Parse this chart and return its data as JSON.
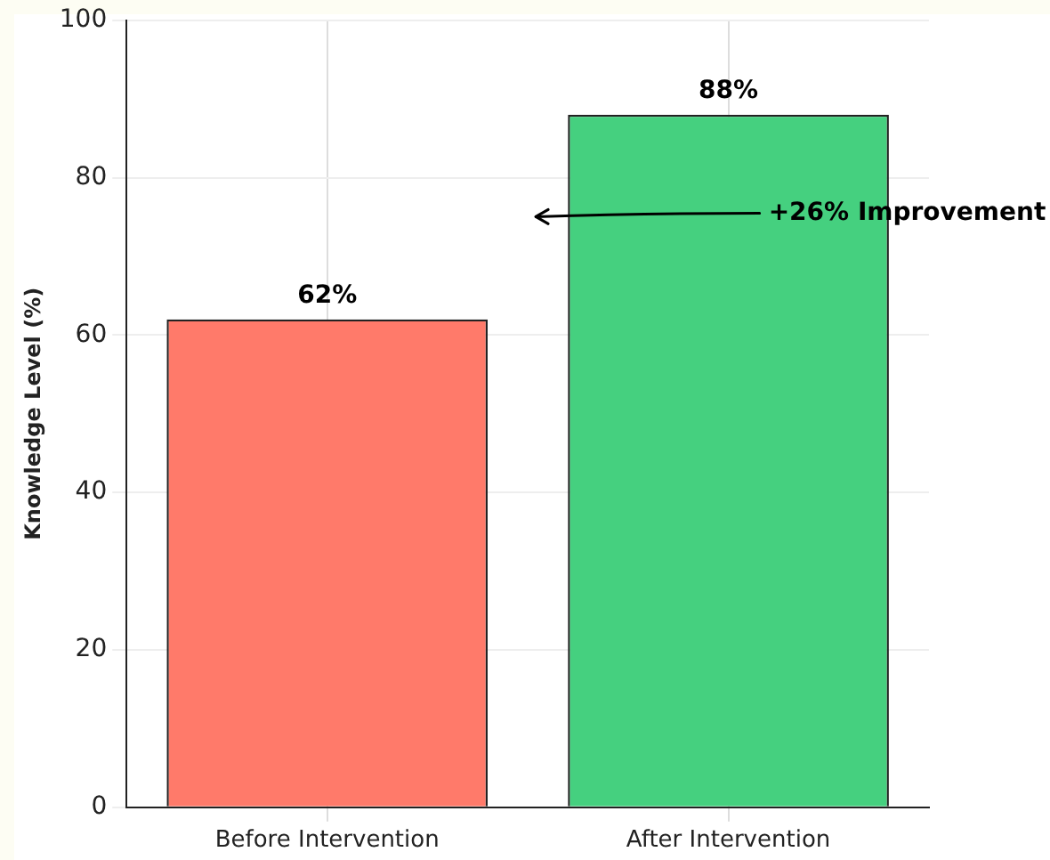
{
  "chart_data": {
    "type": "bar",
    "ylabel": "Knowledge Level (%)",
    "categories": [
      "Before Intervention",
      "After Intervention"
    ],
    "values": [
      62,
      88
    ],
    "colors": [
      "#ff7a6a",
      "#45d07f"
    ],
    "value_labels": [
      "62%",
      "88%"
    ],
    "ylim": [
      0,
      100
    ],
    "yticks": [
      0,
      20,
      40,
      60,
      80,
      100
    ],
    "grid": true,
    "legend": false,
    "annotations": [
      "+26% Improvement"
    ]
  }
}
